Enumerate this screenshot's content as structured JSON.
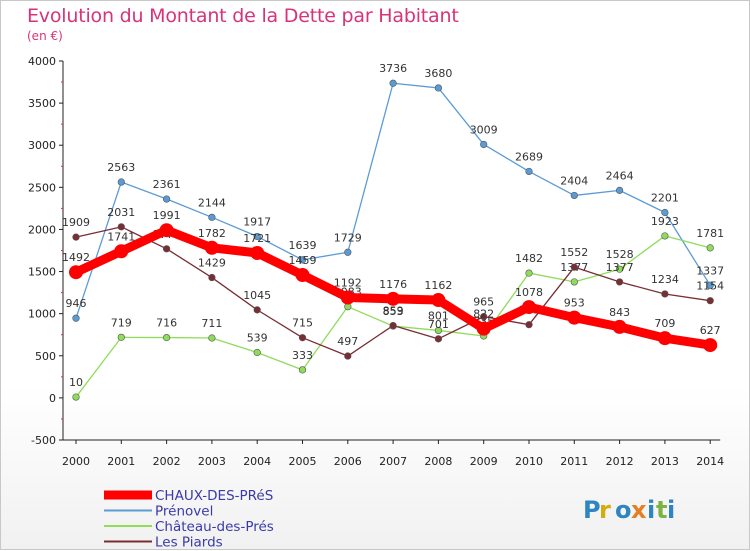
{
  "title": "Evolution du Montant de la Dette par Habitant",
  "subtitle": "(en €)",
  "logo": "Proxiti",
  "chart_data": {
    "type": "line",
    "title": "Evolution du Montant de la Dette par Habitant",
    "subtitle": "(en €)",
    "xlabel": "",
    "ylabel": "",
    "x": [
      2000,
      2001,
      2002,
      2003,
      2004,
      2005,
      2006,
      2007,
      2008,
      2009,
      2010,
      2011,
      2012,
      2013,
      2014
    ],
    "ylim": [
      -500,
      4000
    ],
    "yticks": [
      -500,
      0,
      500,
      1000,
      1500,
      2000,
      2500,
      3000,
      3500,
      4000
    ],
    "grid": false,
    "legend_position": "bottom-left",
    "series": [
      {
        "name": "Prénovel",
        "color": "#5b9bd5",
        "values": [
          946,
          2563,
          2361,
          2144,
          1917,
          1639,
          1729,
          3736,
          3680,
          3009,
          2689,
          2404,
          2464,
          2201,
          1337
        ]
      },
      {
        "name": "Château-des-Prés",
        "color": "#8edc5a",
        "values": [
          10,
          719,
          716,
          711,
          539,
          333,
          1083,
          853,
          801,
          735,
          1482,
          1377,
          1528,
          1923,
          1781
        ]
      },
      {
        "name": "Les Piards",
        "color": "#7a2d33",
        "values": [
          1909,
          2031,
          1770,
          1429,
          1045,
          715,
          497,
          859,
          701,
          965,
          869,
          1552,
          1377,
          1234,
          1154
        ]
      },
      {
        "name": "CHAUX-DES-PRéS",
        "color": "#ff0000",
        "values": [
          1492,
          1741,
          1991,
          1782,
          1721,
          1459,
          1192,
          1176,
          1162,
          822,
          1078,
          953,
          843,
          709,
          627
        ]
      }
    ],
    "legend": [
      {
        "label": "CHAUX-DES-PRéS",
        "color": "#ff0000"
      },
      {
        "label": "Prénovel",
        "color": "#5b9bd5"
      },
      {
        "label": "Château-des-Prés",
        "color": "#8edc5a"
      },
      {
        "label": "Les Piards",
        "color": "#7a2d33"
      }
    ]
  }
}
